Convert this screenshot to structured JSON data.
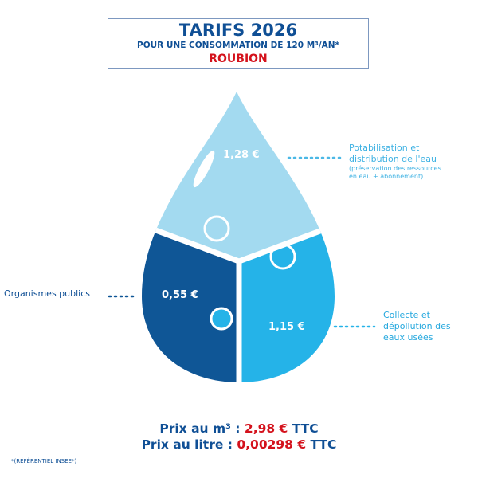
{
  "header": {
    "title": "TARIFS 2026",
    "subtitle": "POUR UNE CONSOMMATION DE 120 M³/AN*",
    "commune": "ROUBION"
  },
  "segments": [
    {
      "value": "1,28 €",
      "label_lines": [
        "Potabilisation et",
        "distribution de l'eau"
      ],
      "note_lines": [
        "(préservation des ressources",
        "en eau + abonnement)"
      ],
      "color": "#a3daf0"
    },
    {
      "value": "0,55 €",
      "label_lines": [
        "Organismes publics"
      ],
      "color": "#0f5696"
    },
    {
      "value": "1,15 €",
      "label_lines": [
        "Collecte et",
        "dépollution des",
        "eaux usées"
      ],
      "color": "#25b3e8"
    }
  ],
  "prices": {
    "m3_label": "Prix au m³ : ",
    "m3_value": "2,98 €",
    "m3_suffix": " TTC",
    "litre_label": "Prix au litre : ",
    "litre_value": "0,00298 €",
    "litre_suffix": " TTC"
  },
  "footnote": "*(RÉFÉRENTIEL INSEE*)"
}
